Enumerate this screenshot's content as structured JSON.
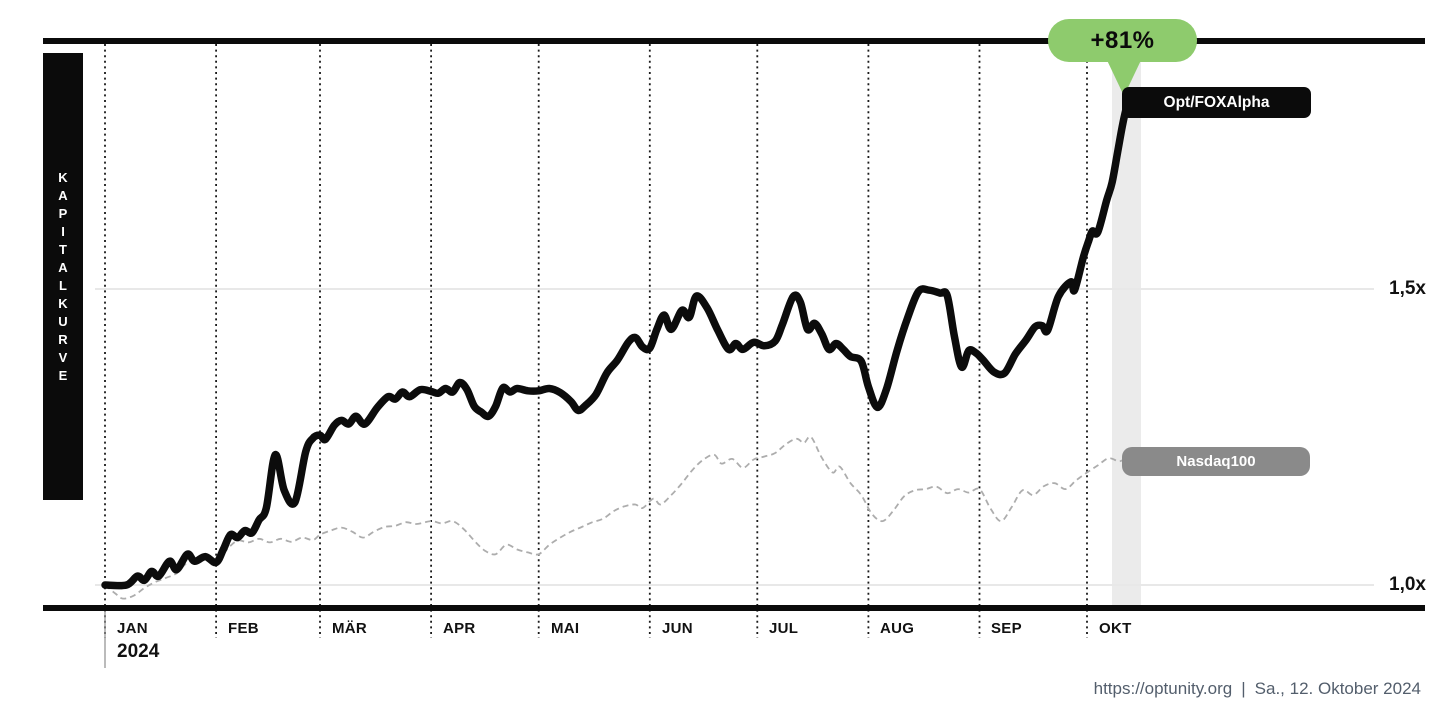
{
  "title_bar": {
    "vertical_label": "KAPITALKURVE"
  },
  "annotation": {
    "gain_badge": "+81%"
  },
  "series_labels": {
    "primary": "Opt/FOXAlpha",
    "benchmark": "Nasdaq100"
  },
  "axis": {
    "year_label": "2024",
    "months": [
      {
        "label": "JAN",
        "day": 0
      },
      {
        "label": "FEB",
        "day": 31
      },
      {
        "label": "MÄR",
        "day": 60
      },
      {
        "label": "APR",
        "day": 91
      },
      {
        "label": "MAI",
        "day": 121
      },
      {
        "label": "JUN",
        "day": 152
      },
      {
        "label": "JUL",
        "day": 182
      },
      {
        "label": "AUG",
        "day": 213
      },
      {
        "label": "SEP",
        "day": 244
      },
      {
        "label": "OKT",
        "day": 274
      }
    ],
    "y_ticks": [
      {
        "label": "1,5x",
        "value": 1.5
      },
      {
        "label": "1,0x",
        "value": 1.0
      }
    ]
  },
  "footer": {
    "url": "https://optunity.org",
    "separator": "|",
    "date": "Sa., 12. Oktober 2024"
  },
  "colors": {
    "accent_green": "#8ecb6d",
    "primary_line": "#0c0c0c",
    "benchmark_line": "#adadad",
    "benchmark_pill": "#8a8a8a",
    "highlight_band": "#ebebeb",
    "gridline": "#e8e8e8",
    "footer_text": "#535e6c"
  },
  "chart_data": {
    "type": "line",
    "title": "Kapitalkurve",
    "x_unit": "days since 2024-01-01",
    "x_range": [
      0,
      285.5
    ],
    "ylim": [
      0.95,
      1.85
    ],
    "y_tick_values": [
      1.0,
      1.5
    ],
    "grid": "horizontal-light, vertical-dotted-by-month",
    "final_gain_pct": 81,
    "highlight_band_days": [
      281,
      289
    ],
    "series": [
      {
        "name": "Opt/FOXAlpha",
        "style": "solid-thick-black",
        "points": [
          [
            0,
            1.0
          ],
          [
            6,
            1.0
          ],
          [
            9,
            1.015
          ],
          [
            11,
            1.008
          ],
          [
            13,
            1.023
          ],
          [
            15,
            1.015
          ],
          [
            18,
            1.04
          ],
          [
            20,
            1.026
          ],
          [
            23,
            1.052
          ],
          [
            25,
            1.04
          ],
          [
            28,
            1.048
          ],
          [
            31,
            1.038
          ],
          [
            33,
            1.06
          ],
          [
            35,
            1.085
          ],
          [
            37,
            1.08
          ],
          [
            39,
            1.092
          ],
          [
            41,
            1.088
          ],
          [
            43,
            1.11
          ],
          [
            45,
            1.13
          ],
          [
            47.5,
            1.22
          ],
          [
            50,
            1.16
          ],
          [
            53,
            1.14
          ],
          [
            56,
            1.225
          ],
          [
            58,
            1.248
          ],
          [
            60,
            1.253
          ],
          [
            61.5,
            1.246
          ],
          [
            64,
            1.27
          ],
          [
            66,
            1.278
          ],
          [
            68,
            1.272
          ],
          [
            70,
            1.285
          ],
          [
            72.5,
            1.272
          ],
          [
            76,
            1.3
          ],
          [
            79,
            1.318
          ],
          [
            81,
            1.314
          ],
          [
            83,
            1.326
          ],
          [
            85,
            1.318
          ],
          [
            88,
            1.33
          ],
          [
            91,
            1.327
          ],
          [
            93,
            1.324
          ],
          [
            95,
            1.332
          ],
          [
            97,
            1.326
          ],
          [
            99,
            1.342
          ],
          [
            101,
            1.33
          ],
          [
            103,
            1.302
          ],
          [
            105,
            1.292
          ],
          [
            107,
            1.285
          ],
          [
            109,
            1.302
          ],
          [
            111,
            1.333
          ],
          [
            113,
            1.326
          ],
          [
            115,
            1.332
          ],
          [
            118,
            1.328
          ],
          [
            121,
            1.328
          ],
          [
            124,
            1.332
          ],
          [
            127,
            1.325
          ],
          [
            130,
            1.31
          ],
          [
            132,
            1.295
          ],
          [
            134,
            1.303
          ],
          [
            137,
            1.322
          ],
          [
            140,
            1.358
          ],
          [
            143,
            1.38
          ],
          [
            146,
            1.41
          ],
          [
            148,
            1.418
          ],
          [
            150,
            1.402
          ],
          [
            152,
            1.4
          ],
          [
            154,
            1.432
          ],
          [
            156,
            1.456
          ],
          [
            158,
            1.432
          ],
          [
            161,
            1.464
          ],
          [
            163,
            1.452
          ],
          [
            165,
            1.488
          ],
          [
            168,
            1.468
          ],
          [
            171,
            1.43
          ],
          [
            174,
            1.398
          ],
          [
            176,
            1.408
          ],
          [
            178,
            1.398
          ],
          [
            181,
            1.41
          ],
          [
            184,
            1.404
          ],
          [
            187,
            1.412
          ],
          [
            189,
            1.44
          ],
          [
            192,
            1.487
          ],
          [
            194,
            1.478
          ],
          [
            196,
            1.432
          ],
          [
            198,
            1.442
          ],
          [
            200,
            1.424
          ],
          [
            202,
            1.398
          ],
          [
            204,
            1.408
          ],
          [
            206,
            1.398
          ],
          [
            208,
            1.386
          ],
          [
            211,
            1.378
          ],
          [
            213,
            1.335
          ],
          [
            215.5,
            1.3
          ],
          [
            218,
            1.33
          ],
          [
            221,
            1.396
          ],
          [
            224,
            1.452
          ],
          [
            227,
            1.496
          ],
          [
            230,
            1.498
          ],
          [
            233,
            1.493
          ],
          [
            235,
            1.489
          ],
          [
            237,
            1.42
          ],
          [
            239,
            1.368
          ],
          [
            241,
            1.396
          ],
          [
            243,
            1.392
          ],
          [
            245,
            1.38
          ],
          [
            248,
            1.36
          ],
          [
            251,
            1.358
          ],
          [
            254,
            1.39
          ],
          [
            257,
            1.414
          ],
          [
            259.5,
            1.436
          ],
          [
            261.5,
            1.438
          ],
          [
            263,
            1.43
          ],
          [
            266,
            1.487
          ],
          [
            269.5,
            1.512
          ],
          [
            270.5,
            1.498
          ],
          [
            273,
            1.554
          ],
          [
            274.5,
            1.582
          ],
          [
            275.5,
            1.598
          ],
          [
            277,
            1.596
          ],
          [
            279.5,
            1.65
          ],
          [
            281,
            1.68
          ],
          [
            282.5,
            1.73
          ],
          [
            284,
            1.78
          ],
          [
            285.5,
            1.819
          ]
        ]
      },
      {
        "name": "Nasdaq100",
        "style": "dashed-thin-gray",
        "points": [
          [
            0,
            1.0
          ],
          [
            3,
            0.985
          ],
          [
            5,
            0.977
          ],
          [
            8,
            0.982
          ],
          [
            11,
            0.995
          ],
          [
            14,
            1.005
          ],
          [
            17,
            1.012
          ],
          [
            20,
            1.02
          ],
          [
            23,
            1.038
          ],
          [
            26,
            1.042
          ],
          [
            29,
            1.046
          ],
          [
            31,
            1.039
          ],
          [
            34,
            1.06
          ],
          [
            37,
            1.075
          ],
          [
            40,
            1.072
          ],
          [
            43,
            1.078
          ],
          [
            46,
            1.072
          ],
          [
            49,
            1.078
          ],
          [
            52,
            1.073
          ],
          [
            55,
            1.08
          ],
          [
            58,
            1.076
          ],
          [
            60,
            1.085
          ],
          [
            63,
            1.092
          ],
          [
            66,
            1.097
          ],
          [
            69,
            1.09
          ],
          [
            72,
            1.08
          ],
          [
            75,
            1.09
          ],
          [
            78,
            1.098
          ],
          [
            81,
            1.1
          ],
          [
            84,
            1.106
          ],
          [
            87,
            1.103
          ],
          [
            91,
            1.108
          ],
          [
            94,
            1.104
          ],
          [
            97,
            1.108
          ],
          [
            100,
            1.095
          ],
          [
            103,
            1.075
          ],
          [
            106,
            1.058
          ],
          [
            109,
            1.052
          ],
          [
            112,
            1.068
          ],
          [
            115,
            1.06
          ],
          [
            118,
            1.055
          ],
          [
            121,
            1.052
          ],
          [
            124,
            1.068
          ],
          [
            127,
            1.08
          ],
          [
            130,
            1.09
          ],
          [
            133,
            1.098
          ],
          [
            136,
            1.106
          ],
          [
            139,
            1.112
          ],
          [
            142,
            1.125
          ],
          [
            145,
            1.133
          ],
          [
            148,
            1.136
          ],
          [
            150,
            1.13
          ],
          [
            153,
            1.146
          ],
          [
            155,
            1.136
          ],
          [
            158,
            1.152
          ],
          [
            161,
            1.172
          ],
          [
            164,
            1.195
          ],
          [
            167,
            1.212
          ],
          [
            170,
            1.22
          ],
          [
            172,
            1.205
          ],
          [
            175,
            1.213
          ],
          [
            178,
            1.198
          ],
          [
            181,
            1.212
          ],
          [
            184,
            1.217
          ],
          [
            187,
            1.223
          ],
          [
            190,
            1.238
          ],
          [
            193,
            1.247
          ],
          [
            195,
            1.24
          ],
          [
            197,
            1.25
          ],
          [
            200,
            1.215
          ],
          [
            203,
            1.19
          ],
          [
            205,
            1.2
          ],
          [
            208,
            1.172
          ],
          [
            211,
            1.152
          ],
          [
            214,
            1.12
          ],
          [
            217,
            1.108
          ],
          [
            220,
            1.126
          ],
          [
            223,
            1.15
          ],
          [
            226,
            1.16
          ],
          [
            229,
            1.162
          ],
          [
            232,
            1.166
          ],
          [
            235,
            1.155
          ],
          [
            238,
            1.162
          ],
          [
            241,
            1.156
          ],
          [
            244,
            1.162
          ],
          [
            247,
            1.13
          ],
          [
            250,
            1.108
          ],
          [
            253,
            1.132
          ],
          [
            256,
            1.16
          ],
          [
            259,
            1.152
          ],
          [
            262,
            1.167
          ],
          [
            265,
            1.172
          ],
          [
            268,
            1.162
          ],
          [
            271,
            1.177
          ],
          [
            274,
            1.19
          ],
          [
            277,
            1.202
          ],
          [
            280,
            1.214
          ],
          [
            283,
            1.209
          ],
          [
            285,
            1.215
          ]
        ]
      }
    ]
  }
}
